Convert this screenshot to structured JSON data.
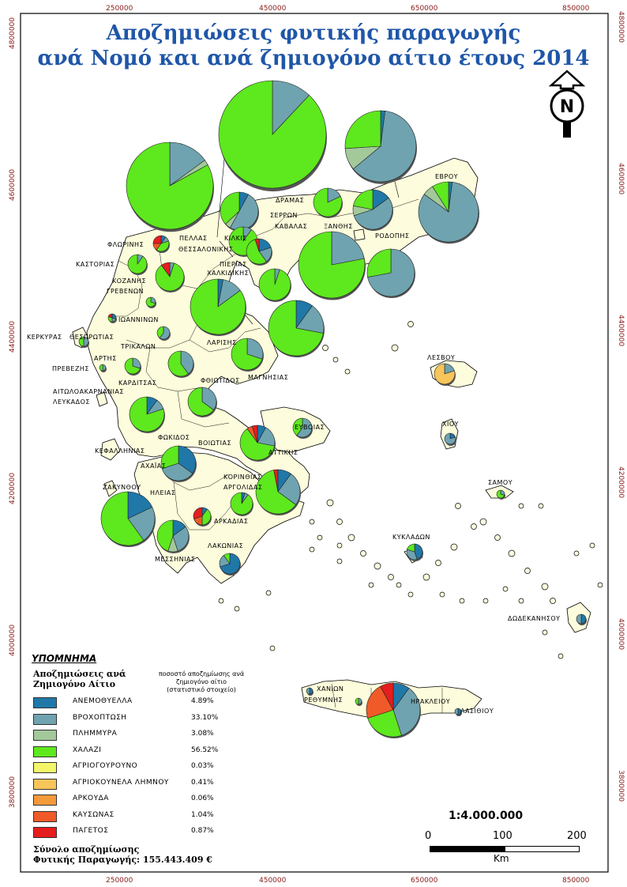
{
  "title": {
    "line1": "Αποζημιώσεις φυτικής παραγωγής",
    "line2": "ανά Νομό και ανά ζημιογόνο αίτιο έτους 2014"
  },
  "frame": {
    "x_labels": [
      "250000",
      "450000",
      "650000",
      "850000"
    ],
    "y_labels": [
      "4800000",
      "4600000",
      "4400000",
      "4200000",
      "4000000",
      "3800000"
    ]
  },
  "regions": [
    "ΕΒΡΟΥ",
    "ΔΡΑΜΑΣ",
    "ΣΕΡΡΩΝ",
    "ΚΑΒΑΛΑΣ",
    "ΞΑΝΘΗΣ",
    "ΡΟΔΟΠΗΣ",
    "ΦΛΩΡΙΝΗΣ",
    "ΠΕΛΛΑΣ",
    "ΚΙΛΚΙΣ",
    "ΘΕΣΣΑΛΟΝΙΚΗΣ",
    "ΚΑΣΤΟΡΙΑΣ",
    "ΠΙΕΡΙΑΣ",
    "ΧΑΛΚΙΔΙΚΗΣ",
    "ΚΟΖΑΝΗΣ",
    "ΓΡΕΒΕΝΩΝ",
    "ΙΩΑΝΝΙΝΩΝ",
    "ΚΕΡΚΥΡΑΣ",
    "ΘΕΣΠΡΩΤΙΑΣ",
    "ΤΡΙΚΑΛΩΝ",
    "ΛΑΡΙΣΗΣ",
    "ΛΕΣΒΟΥ",
    "ΑΡΤΗΣ",
    "ΠΡΕΒΕΖΗΣ",
    "ΜΑΓΝΗΣΙΑΣ",
    "ΚΑΡΔΙΤΣΑΣ",
    "ΦΘΙΩΤΙΔΟΣ",
    "ΑΙΤΩΛΟΑΚΑΡΝΑΝΙΑΣ",
    "ΛΕΥΚΑΔΟΣ",
    "ΕΥΒΟΙΑΣ",
    "ΧΙΟΥ",
    "ΦΩΚΙΔΟΣ",
    "ΒΟΙΩΤΙΑΣ",
    "ΚΕΦΑΛΛΗΝΙΑΣ",
    "ΑΤΤΙΚΗΣ",
    "ΑΧΑΪΑΣ",
    "ΣΑΜΟΥ",
    "ΚΟΡΙΝΘΙΑΣ",
    "ΑΡΓΟΛΙΔΑΣ",
    "ΖΑΚΥΝΘΟΥ",
    "ΗΛΕΙΑΣ",
    "ΑΡΚΑΔΙΑΣ",
    "ΚΥΚΛΑΔΩΝ",
    "ΛΑΚΩΝΙΑΣ",
    "ΜΕΣΣΗΝΙΑΣ",
    "ΔΩΔΕΚΑΝΗΣΟΥ",
    "ΧΑΝΙΩΝ",
    "ΡΕΘΥΜΝΗΣ",
    "ΗΡΑΚΛΕΙΟΥ",
    "ΛΑΣΙΘΙΟΥ"
  ],
  "legend": {
    "title": "ΥΠΟΜΝΗΜΑ",
    "subtitle_line1": "Αποζημιώσεις ανά",
    "subtitle_line2": "Ζημιογόνο Αίτιο",
    "col_head_line1": "ποσοστό αποζημίωσης ανά",
    "col_head_line2": "ζημιογόνο αίτιο",
    "col_head_line3": "(στατιστικό στοιχείο)",
    "items": [
      {
        "label": "ΑΝΕΜΟΘΥΕΛΛΑ",
        "pct": "4.89%",
        "color": "#1f78a8"
      },
      {
        "label": "ΒΡΟΧΟΠΤΩΣΗ",
        "pct": "33.10%",
        "color": "#6fa3b0"
      },
      {
        "label": "ΠΛΗΜΜΥΡΑ",
        "pct": "3.08%",
        "color": "#a3c99a"
      },
      {
        "label": "ΧΑΛΑΖΙ",
        "pct": "56.52%",
        "color": "#5ee81e"
      },
      {
        "label": "ΑΓΡΙΟΓΟΥΡΟΥΝΟ",
        "pct": "0.03%",
        "color": "#f4f66a"
      },
      {
        "label": "ΑΓΡΙΟΚΟΥΝΕΛΑ ΛΗΜΝΟΥ",
        "pct": "0.41%",
        "color": "#f7c55a"
      },
      {
        "label": "ΑΡΚΟΥΔΑ",
        "pct": "0.06%",
        "color": "#f59a3a"
      },
      {
        "label": "ΚΑΥΣΩΝΑΣ",
        "pct": "1.04%",
        "color": "#ef5a28"
      },
      {
        "label": "ΠΑΓΕΤΟΣ",
        "pct": "0.87%",
        "color": "#e51d1d"
      }
    ],
    "total_line1": "Σύνολο αποζημίωσης",
    "total_line2": "Φυτικής Παραγωγής: 155.443.409 €"
  },
  "scale": {
    "ratio": "1:4.000.000",
    "ticks": [
      "0",
      "100",
      "200"
    ],
    "unit": "Km"
  },
  "north_arrow_letter": "N",
  "pie_colors": {
    "wind": "#1f78a8",
    "rain": "#6fa3b0",
    "flood": "#a3c99a",
    "hail": "#5ee81e",
    "boar": "#f4f66a",
    "rabbit": "#f7c55a",
    "bear": "#f59a3a",
    "heat": "#ef5a28",
    "frost": "#e51d1d"
  }
}
